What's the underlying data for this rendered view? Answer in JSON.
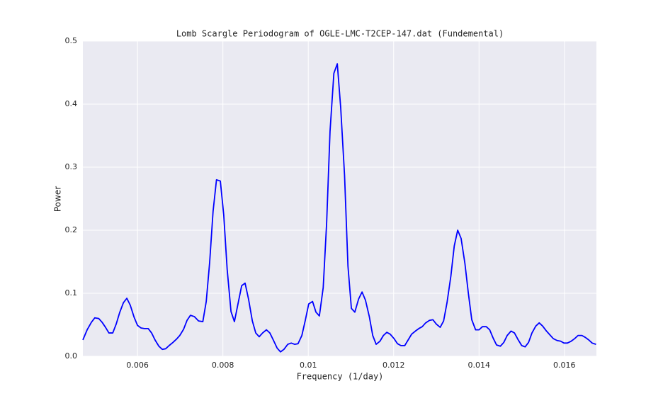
{
  "chart_data": {
    "type": "line",
    "title": "Lomb Scargle Periodogram of OGLE-LMC-T2CEP-147.dat (Fundemental)",
    "xlabel": "Frequency (1/day)",
    "ylabel": "Power",
    "color": "#0000ff",
    "grid": true,
    "xlim": [
      0.00472,
      0.01675
    ],
    "ylim": [
      0,
      0.5
    ],
    "xticks": [
      0.006,
      0.008,
      0.01,
      0.012,
      0.014,
      0.016
    ],
    "yticks": [
      {
        "value": 0,
        "label": "0.0"
      },
      0.1,
      0.2,
      0.3,
      0.4,
      0.5
    ],
    "x": [
      0.00472,
      0.00482,
      0.00492,
      0.005,
      0.00509,
      0.00517,
      0.00525,
      0.00533,
      0.00542,
      0.0055,
      0.00558,
      0.00567,
      0.00575,
      0.00583,
      0.00592,
      0.006,
      0.00608,
      0.00616,
      0.00625,
      0.00633,
      0.00641,
      0.0065,
      0.00658,
      0.00666,
      0.00674,
      0.00683,
      0.00691,
      0.00699,
      0.00708,
      0.00716,
      0.00724,
      0.00733,
      0.00743,
      0.00753,
      0.00761,
      0.00769,
      0.00777,
      0.00785,
      0.00794,
      0.00802,
      0.0081,
      0.00819,
      0.00827,
      0.00835,
      0.00844,
      0.00852,
      0.0086,
      0.00869,
      0.00877,
      0.00885,
      0.00893,
      0.00902,
      0.0091,
      0.00918,
      0.00927,
      0.00935,
      0.00943,
      0.00952,
      0.0096,
      0.00968,
      0.00976,
      0.00985,
      0.00993,
      0.01001,
      0.0101,
      0.01018,
      0.01026,
      0.01035,
      0.01043,
      0.01051,
      0.0106,
      0.01068,
      0.01076,
      0.01085,
      0.01093,
      0.01101,
      0.01109,
      0.01118,
      0.01126,
      0.01134,
      0.01143,
      0.01151,
      0.01159,
      0.01168,
      0.01176,
      0.01184,
      0.01192,
      0.01201,
      0.01209,
      0.01217,
      0.01226,
      0.01234,
      0.01242,
      0.01251,
      0.01259,
      0.01267,
      0.01275,
      0.01284,
      0.01292,
      0.013,
      0.01309,
      0.01317,
      0.01325,
      0.01334,
      0.01342,
      0.0135,
      0.01358,
      0.01367,
      0.01375,
      0.01383,
      0.01392,
      0.014,
      0.01408,
      0.01417,
      0.01425,
      0.01433,
      0.01441,
      0.0145,
      0.01458,
      0.01466,
      0.01475,
      0.01483,
      0.01491,
      0.015,
      0.01508,
      0.01516,
      0.01524,
      0.01533,
      0.01541,
      0.01549,
      0.01558,
      0.01566,
      0.01574,
      0.01583,
      0.01591,
      0.01599,
      0.01607,
      0.01616,
      0.01624,
      0.01632,
      0.01641,
      0.01649,
      0.01657,
      0.01665,
      0.01674
    ],
    "values": [
      0.026,
      0.042,
      0.054,
      0.061,
      0.06,
      0.054,
      0.046,
      0.037,
      0.037,
      0.051,
      0.069,
      0.085,
      0.092,
      0.081,
      0.062,
      0.049,
      0.045,
      0.044,
      0.044,
      0.037,
      0.026,
      0.016,
      0.011,
      0.012,
      0.017,
      0.022,
      0.027,
      0.033,
      0.043,
      0.057,
      0.065,
      0.063,
      0.056,
      0.055,
      0.087,
      0.149,
      0.23,
      0.28,
      0.278,
      0.224,
      0.138,
      0.071,
      0.055,
      0.082,
      0.112,
      0.116,
      0.091,
      0.056,
      0.037,
      0.031,
      0.037,
      0.042,
      0.037,
      0.026,
      0.013,
      0.007,
      0.011,
      0.019,
      0.021,
      0.019,
      0.02,
      0.033,
      0.057,
      0.083,
      0.087,
      0.07,
      0.064,
      0.109,
      0.211,
      0.357,
      0.449,
      0.464,
      0.394,
      0.287,
      0.143,
      0.076,
      0.07,
      0.091,
      0.102,
      0.089,
      0.063,
      0.033,
      0.019,
      0.024,
      0.033,
      0.038,
      0.035,
      0.028,
      0.02,
      0.017,
      0.017,
      0.026,
      0.035,
      0.04,
      0.044,
      0.047,
      0.053,
      0.057,
      0.058,
      0.051,
      0.046,
      0.056,
      0.085,
      0.127,
      0.175,
      0.2,
      0.187,
      0.147,
      0.1,
      0.058,
      0.042,
      0.042,
      0.047,
      0.047,
      0.042,
      0.029,
      0.018,
      0.016,
      0.022,
      0.033,
      0.04,
      0.037,
      0.027,
      0.017,
      0.015,
      0.022,
      0.037,
      0.048,
      0.053,
      0.048,
      0.04,
      0.034,
      0.028,
      0.025,
      0.024,
      0.021,
      0.021,
      0.024,
      0.028,
      0.033,
      0.033,
      0.03,
      0.026,
      0.021,
      0.019
    ]
  }
}
